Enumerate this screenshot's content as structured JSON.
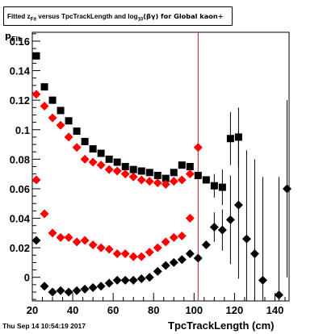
{
  "title": {
    "prefix": "Fitted  z",
    "sub1": "Fit",
    "middle": "  versus TpcTrackLength and log",
    "sub2": "10",
    "suffix": "(βγ) for Global kaon+"
  },
  "footer": {
    "timestamp": "Thu Sep 14 10:54:19 2017"
  },
  "chart_data": {
    "type": "scatter",
    "title": "Fitted z_Fit versus TpcTrackLength and log10(βγ) for Global kaon+",
    "xlabel": "TpcTrackLength (cm)",
    "ylabel": "p_Fit",
    "xlim": [
      20,
      147
    ],
    "ylim": [
      -0.016,
      0.166
    ],
    "x_ticks": [
      20,
      40,
      60,
      80,
      100,
      120,
      140
    ],
    "y_ticks": [
      0,
      0.02,
      0.04,
      0.06,
      0.08,
      0.1,
      0.12,
      0.14,
      0.16
    ],
    "y_tick_labels": [
      "0",
      "0.02",
      "0.04",
      "0.06",
      "0.08",
      "0.1",
      "0.12",
      "0.14",
      "0.16"
    ],
    "vertical_line": {
      "x": 102,
      "color": "#b22222"
    },
    "colors": {
      "black": "#000000",
      "red": "#ff0000"
    },
    "series": [
      {
        "marker": "square",
        "color": "#000000",
        "points": [
          {
            "x": 22,
            "y": 0.15
          },
          {
            "x": 26,
            "y": 0.129
          },
          {
            "x": 30,
            "y": 0.12
          },
          {
            "x": 34,
            "y": 0.113
          },
          {
            "x": 38,
            "y": 0.106
          },
          {
            "x": 42,
            "y": 0.099
          },
          {
            "x": 46,
            "y": 0.092
          },
          {
            "x": 50,
            "y": 0.087
          },
          {
            "x": 54,
            "y": 0.084
          },
          {
            "x": 58,
            "y": 0.08
          },
          {
            "x": 62,
            "y": 0.078
          },
          {
            "x": 66,
            "y": 0.075
          },
          {
            "x": 70,
            "y": 0.073
          },
          {
            "x": 74,
            "y": 0.072
          },
          {
            "x": 78,
            "y": 0.071
          },
          {
            "x": 82,
            "y": 0.069
          },
          {
            "x": 86,
            "y": 0.067
          },
          {
            "x": 90,
            "y": 0.071
          },
          {
            "x": 94,
            "y": 0.076
          },
          {
            "x": 98,
            "y": 0.075
          },
          {
            "x": 102,
            "y": 0.069
          },
          {
            "x": 106,
            "y": 0.066
          },
          {
            "x": 110,
            "y": 0.062,
            "err": 0.008
          },
          {
            "x": 114,
            "y": 0.061,
            "err": 0.012
          },
          {
            "x": 118,
            "y": 0.094,
            "err": 0.018
          },
          {
            "x": 122,
            "y": 0.095,
            "err": 0.02
          }
        ]
      },
      {
        "marker": "diamond",
        "color": "#ff0000",
        "points": [
          {
            "x": 22,
            "y": 0.124
          },
          {
            "x": 26,
            "y": 0.116
          },
          {
            "x": 30,
            "y": 0.108
          },
          {
            "x": 34,
            "y": 0.103
          },
          {
            "x": 38,
            "y": 0.095
          },
          {
            "x": 42,
            "y": 0.088
          },
          {
            "x": 46,
            "y": 0.08
          },
          {
            "x": 50,
            "y": 0.078
          },
          {
            "x": 54,
            "y": 0.076
          },
          {
            "x": 58,
            "y": 0.073
          },
          {
            "x": 62,
            "y": 0.072
          },
          {
            "x": 66,
            "y": 0.07
          },
          {
            "x": 70,
            "y": 0.068
          },
          {
            "x": 74,
            "y": 0.066
          },
          {
            "x": 78,
            "y": 0.065
          },
          {
            "x": 82,
            "y": 0.064
          },
          {
            "x": 86,
            "y": 0.063
          },
          {
            "x": 90,
            "y": 0.065
          },
          {
            "x": 94,
            "y": 0.066
          },
          {
            "x": 98,
            "y": 0.07
          },
          {
            "x": 102,
            "y": 0.088
          }
        ]
      },
      {
        "marker": "diamond",
        "color": "#ff0000",
        "points": [
          {
            "x": 22,
            "y": 0.066
          },
          {
            "x": 26,
            "y": 0.043
          },
          {
            "x": 30,
            "y": 0.03
          },
          {
            "x": 34,
            "y": 0.027
          },
          {
            "x": 38,
            "y": 0.027
          },
          {
            "x": 42,
            "y": 0.024
          },
          {
            "x": 46,
            "y": 0.025
          },
          {
            "x": 50,
            "y": 0.022
          },
          {
            "x": 54,
            "y": 0.02
          },
          {
            "x": 58,
            "y": 0.019
          },
          {
            "x": 62,
            "y": 0.016
          },
          {
            "x": 66,
            "y": 0.016
          },
          {
            "x": 70,
            "y": 0.014
          },
          {
            "x": 74,
            "y": 0.014
          },
          {
            "x": 78,
            "y": 0.017
          },
          {
            "x": 82,
            "y": 0.02
          },
          {
            "x": 86,
            "y": 0.024
          },
          {
            "x": 90,
            "y": 0.027
          },
          {
            "x": 94,
            "y": 0.028
          },
          {
            "x": 98,
            "y": 0.04
          }
        ]
      },
      {
        "marker": "diamond",
        "color": "#000000",
        "points": [
          {
            "x": 22,
            "y": 0.025
          },
          {
            "x": 26,
            "y": -0.006
          },
          {
            "x": 30,
            "y": -0.01
          },
          {
            "x": 34,
            "y": -0.009
          },
          {
            "x": 38,
            "y": -0.01
          },
          {
            "x": 42,
            "y": -0.009
          },
          {
            "x": 46,
            "y": -0.008
          },
          {
            "x": 50,
            "y": -0.007
          },
          {
            "x": 54,
            "y": -0.006
          },
          {
            "x": 58,
            "y": -0.004
          },
          {
            "x": 62,
            "y": -0.002
          },
          {
            "x": 66,
            "y": -0.002
          },
          {
            "x": 70,
            "y": -0.002
          },
          {
            "x": 74,
            "y": -0.001
          },
          {
            "x": 78,
            "y": 0.0
          },
          {
            "x": 82,
            "y": 0.004
          },
          {
            "x": 86,
            "y": 0.008
          },
          {
            "x": 90,
            "y": 0.01
          },
          {
            "x": 94,
            "y": 0.012
          },
          {
            "x": 98,
            "y": 0.016
          },
          {
            "x": 102,
            "y": 0.013
          },
          {
            "x": 106,
            "y": 0.022
          },
          {
            "x": 110,
            "y": 0.034,
            "err": 0.01
          },
          {
            "x": 114,
            "y": 0.032,
            "err": 0.014
          },
          {
            "x": 118,
            "y": 0.039,
            "err": 0.03
          },
          {
            "x": 122,
            "y": 0.049,
            "err": 0.05
          },
          {
            "x": 126,
            "y": 0.026,
            "err": 0.06
          },
          {
            "x": 130,
            "y": 0.016,
            "err": 0.064
          },
          {
            "x": 134,
            "y": -0.002,
            "err": 0.07
          },
          {
            "x": 142,
            "y": -0.012,
            "err": 0.08
          },
          {
            "x": 146,
            "y": 0.06,
            "err": 0.06
          }
        ]
      }
    ]
  }
}
